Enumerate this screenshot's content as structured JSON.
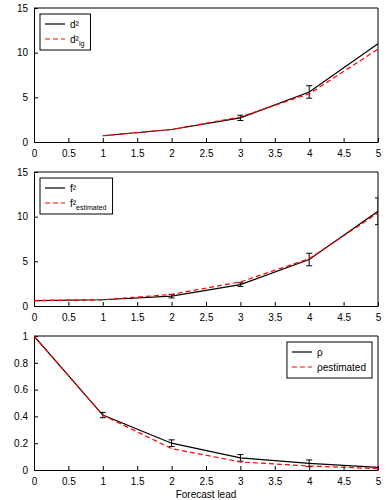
{
  "chart_data": [
    {
      "type": "line",
      "x": [
        1,
        2,
        3,
        4,
        5
      ],
      "xlim": [
        0,
        5
      ],
      "xticks": [
        0,
        0.5,
        1,
        1.5,
        2,
        2.5,
        3,
        3.5,
        4,
        4.5,
        5
      ],
      "ylim": [
        0,
        15
      ],
      "yticks": [
        0,
        5,
        10,
        15
      ],
      "grid": false,
      "legend": "upper left",
      "series": [
        {
          "name": "d²",
          "color": "#000000",
          "line_style": "solid",
          "values": [
            0.7,
            1.4,
            2.7,
            5.6,
            11.0
          ],
          "errors": [
            null,
            null,
            0.3,
            0.7,
            null
          ]
        },
        {
          "name": "d²lg",
          "color": "#ff0000",
          "line_style": "dashed",
          "values": [
            0.7,
            1.4,
            2.8,
            5.4,
            10.4
          ]
        }
      ]
    },
    {
      "type": "line",
      "x": [
        0,
        1,
        2,
        3,
        4,
        5
      ],
      "xlim": [
        0,
        5
      ],
      "xticks": [
        0,
        0.5,
        1,
        1.5,
        2,
        2.5,
        3,
        3.5,
        4,
        4.5,
        5
      ],
      "ylim": [
        0,
        15
      ],
      "yticks": [
        0,
        5,
        10,
        15
      ],
      "grid": false,
      "legend": "upper left",
      "series": [
        {
          "name": "f²",
          "color": "#000000",
          "line_style": "solid",
          "values": [
            0.6,
            0.7,
            1.1,
            2.4,
            5.2,
            10.6
          ],
          "errors": [
            null,
            null,
            0.2,
            0.2,
            0.7,
            1.5
          ]
        },
        {
          "name": "f²estimated",
          "color": "#ff0000",
          "line_style": "dashed",
          "values": [
            0.6,
            0.7,
            1.3,
            2.7,
            5.3,
            10.4
          ]
        }
      ]
    },
    {
      "type": "line",
      "x": [
        0,
        1,
        2,
        3,
        4,
        5
      ],
      "xlim": [
        0,
        5
      ],
      "xticks": [
        0,
        0.5,
        1,
        1.5,
        2,
        2.5,
        3,
        3.5,
        4,
        4.5,
        5
      ],
      "ylim": [
        0,
        1
      ],
      "yticks": [
        0,
        0.2,
        0.4,
        0.6,
        0.8,
        1
      ],
      "grid": false,
      "legend": "upper right",
      "xlabel": "Forecast lead",
      "series": [
        {
          "name": "ρ",
          "color": "#000000",
          "line_style": "solid",
          "values": [
            1,
            0.41,
            0.2,
            0.09,
            0.05,
            0.02
          ],
          "errors": [
            null,
            0.02,
            0.025,
            0.025,
            0.025,
            null
          ]
        },
        {
          "name": "ρestimated",
          "color": "#ff0000",
          "line_style": "dashed",
          "values": [
            1,
            0.41,
            0.16,
            0.06,
            0.03,
            0.01
          ]
        }
      ]
    }
  ]
}
